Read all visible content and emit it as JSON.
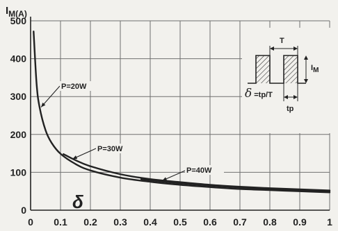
{
  "chart_data": {
    "type": "line",
    "ylabel_main": "I",
    "ylabel_sub": "M(A)",
    "xlabel_symbol": "δ",
    "xlim": [
      0,
      1
    ],
    "ylim": [
      0,
      500
    ],
    "x_ticks": [
      "0",
      "0.1",
      "0.2",
      "0.3",
      "0.4",
      "0.5",
      "0.6",
      "0.7",
      "0.8",
      "0.9",
      "1"
    ],
    "y_ticks": [
      "0",
      "100",
      "200",
      "300",
      "400",
      "500"
    ],
    "grid": true,
    "series": [
      {
        "name": "P=20W",
        "x": [
          0.01,
          0.02,
          0.03,
          0.05,
          0.07,
          0.1,
          0.15,
          0.2,
          0.3,
          0.4,
          0.5,
          0.6,
          0.7,
          0.8,
          0.9,
          1.0
        ],
        "y": [
          472,
          334,
          272,
          211,
          178,
          149,
          122,
          105,
          86,
          75,
          67,
          61,
          56,
          53,
          50,
          47
        ]
      },
      {
        "name": "P=30W",
        "x": [
          0.11,
          0.15,
          0.2,
          0.3,
          0.4,
          0.5,
          0.6,
          0.7,
          0.8,
          0.9,
          1.0
        ],
        "y": [
          148,
          132,
          116,
          95,
          82,
          74,
          67,
          62,
          58,
          55,
          52
        ]
      },
      {
        "name": "P=40W",
        "x": [
          0.37,
          0.4,
          0.5,
          0.6,
          0.7,
          0.8,
          0.9,
          1.0
        ],
        "y": [
          82,
          79,
          71,
          65,
          60,
          56,
          53,
          50
        ]
      }
    ],
    "inset": {
      "period_label": "T",
      "current_label_main": "I",
      "current_label_sub": "M",
      "pulse_label": "tp",
      "formula_symbol": "δ",
      "formula_text": "=tp/T"
    }
  }
}
